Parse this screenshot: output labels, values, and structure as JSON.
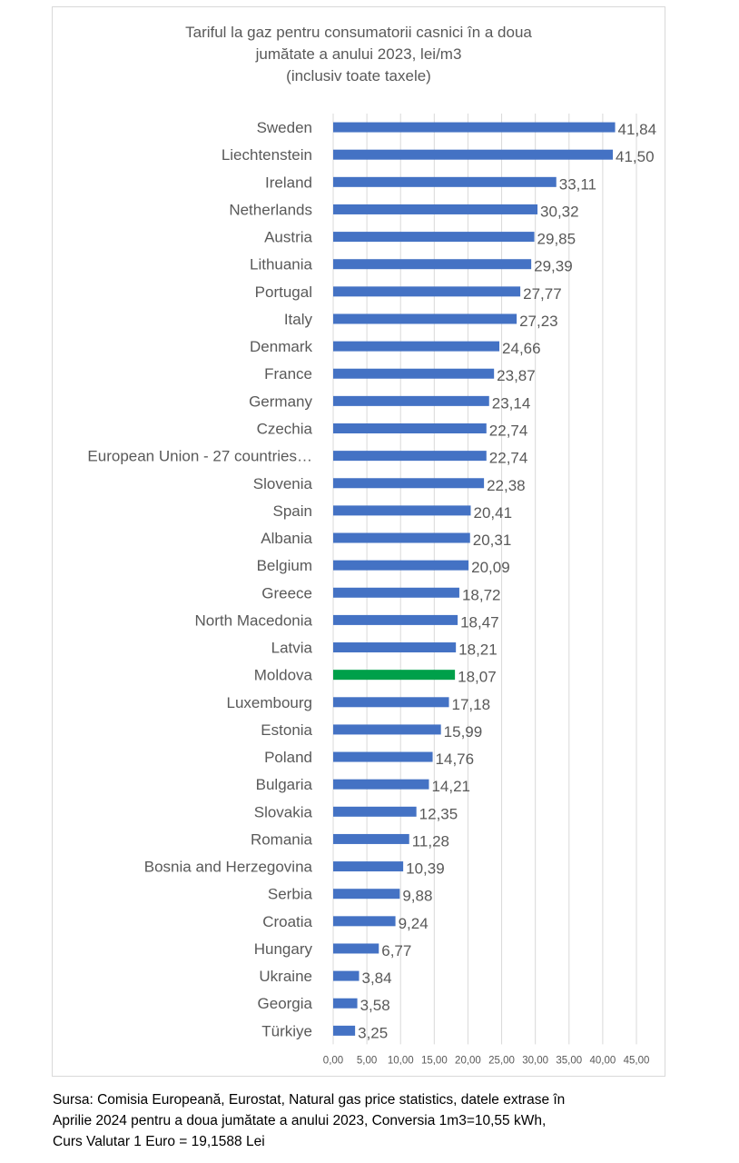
{
  "chart_data": {
    "type": "bar",
    "orientation": "horizontal",
    "title_lines": [
      "Tariful la gaz pentru consumatorii casnici în a doua",
      "jumătate a anului 2023, lei/m3",
      "(inclusiv toate taxele)"
    ],
    "categories": [
      "Sweden",
      "Liechtenstein",
      "Ireland",
      "Netherlands",
      "Austria",
      "Lithuania",
      "Portugal",
      "Italy",
      "Denmark",
      "France",
      "Germany",
      "Czechia",
      "European Union - 27 countries…",
      "Slovenia",
      "Spain",
      "Albania",
      "Belgium",
      "Greece",
      "North Macedonia",
      "Latvia",
      "Moldova",
      "Luxembourg",
      "Estonia",
      "Poland",
      "Bulgaria",
      "Slovakia",
      "Romania",
      "Bosnia and Herzegovina",
      "Serbia",
      "Croatia",
      "Hungary",
      "Ukraine",
      "Georgia",
      "Türkiye"
    ],
    "values": [
      41.84,
      41.5,
      33.11,
      30.32,
      29.85,
      29.39,
      27.77,
      27.23,
      24.66,
      23.87,
      23.14,
      22.74,
      22.74,
      22.38,
      20.41,
      20.31,
      20.09,
      18.72,
      18.47,
      18.21,
      18.07,
      17.18,
      15.99,
      14.76,
      14.21,
      12.35,
      11.28,
      10.39,
      9.88,
      9.24,
      6.77,
      3.84,
      3.58,
      3.25
    ],
    "value_labels": [
      "41,84",
      "41,50",
      "33,11",
      "30,32",
      "29,85",
      "29,39",
      "27,77",
      "27,23",
      "24,66",
      "23,87",
      "23,14",
      "22,74",
      "22,74",
      "22,38",
      "20,41",
      "20,31",
      "20,09",
      "18,72",
      "18,47",
      "18,21",
      "18,07",
      "17,18",
      "15,99",
      "14,76",
      "14,21",
      "12,35",
      "11,28",
      "10,39",
      "9,88",
      "9,24",
      "6,77",
      "3,84",
      "3,58",
      "3,25"
    ],
    "highlight_category": "Moldova",
    "xlim": [
      0,
      45
    ],
    "x_ticks": [
      0,
      5,
      10,
      15,
      20,
      25,
      30,
      35,
      40,
      45
    ],
    "x_tick_labels": [
      "0,00",
      "5,00",
      "10,00",
      "15,00",
      "20,00",
      "25,00",
      "30,00",
      "35,00",
      "40,00",
      "45,00"
    ],
    "grid": "vertical",
    "colors": {
      "bar": "#4472c4",
      "highlight": "#00a04a",
      "grid": "#d9d9d9",
      "text": "#595959"
    }
  },
  "source_note": [
    "Sursa: Comisia Europeană, Eurostat, Natural gas price statistics, datele extrase în",
    "Aprilie 2024 pentru a doua jumătate a anului 2023, Conversia 1m3=10,55 kWh,",
    "Curs Valutar 1 Euro = 19,1588 Lei"
  ]
}
